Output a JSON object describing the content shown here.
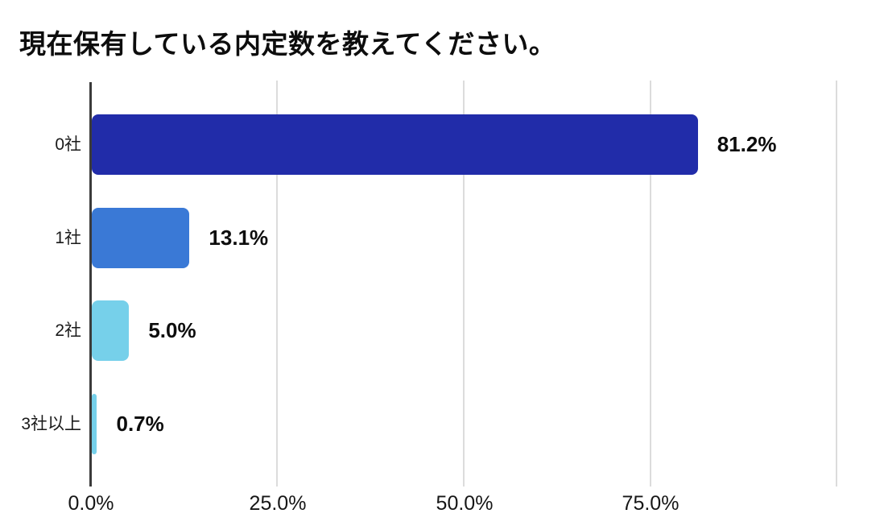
{
  "chart_data": {
    "type": "bar",
    "orientation": "horizontal",
    "title": "現在保有している内定数を教えてください。",
    "categories": [
      "0社",
      "1社",
      "2社",
      "3社以上"
    ],
    "values": [
      81.2,
      13.1,
      5.0,
      0.7
    ],
    "value_labels": [
      "81.2%",
      "13.1%",
      "5.0%",
      "0.7%"
    ],
    "bar_colors": [
      "#212ca9",
      "#3a79d6",
      "#76d0ea",
      "#76d0ea"
    ],
    "x_axis": {
      "tick_labels": [
        "0.0%",
        "25.0%",
        "50.0%",
        "75.0%"
      ],
      "tick_positions_pct": [
        0,
        25,
        50,
        75,
        100
      ],
      "range_pct": [
        0,
        100
      ]
    },
    "xlabel": "",
    "ylabel": "",
    "grid": "vertical",
    "legend": false,
    "colors": {
      "grid": "#dcdcdc",
      "axis": "#3b3b3b",
      "text": "#0d0d0d",
      "background": "#ffffff"
    }
  }
}
